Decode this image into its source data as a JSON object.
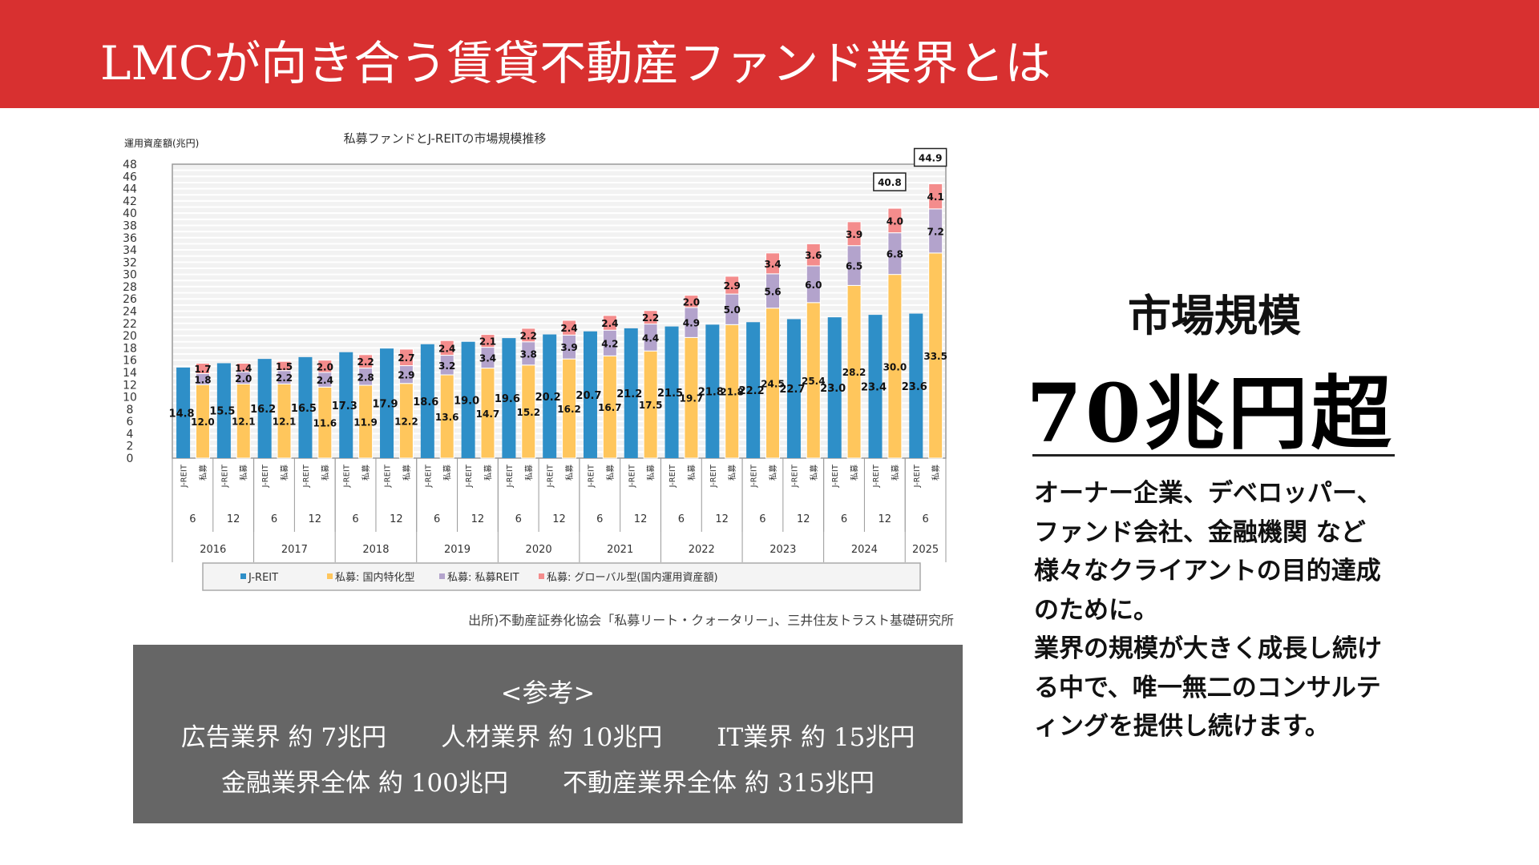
{
  "header": {
    "title": "LMCが向き合う賃貸不動産ファンド業界とは"
  },
  "chart_data": {
    "type": "bar",
    "title": "私募ファンドとJ-REITの市場規模推移",
    "ylabel": "運用資産額(兆円)",
    "xlabel": "",
    "ylim": [
      0,
      48
    ],
    "yticks": [
      0,
      2,
      4,
      6,
      8,
      10,
      12,
      14,
      16,
      18,
      20,
      22,
      24,
      26,
      28,
      30,
      32,
      34,
      36,
      38,
      40,
      42,
      44,
      46,
      48
    ],
    "grid": true,
    "legend_position": "bottom",
    "periods": [
      {
        "year": "2016",
        "month": "6"
      },
      {
        "year": "2016",
        "month": "12"
      },
      {
        "year": "2017",
        "month": "6"
      },
      {
        "year": "2017",
        "month": "12"
      },
      {
        "year": "2018",
        "month": "6"
      },
      {
        "year": "2018",
        "month": "12"
      },
      {
        "year": "2019",
        "month": "6"
      },
      {
        "year": "2019",
        "month": "12"
      },
      {
        "year": "2020",
        "month": "6"
      },
      {
        "year": "2020",
        "month": "12"
      },
      {
        "year": "2021",
        "month": "6"
      },
      {
        "year": "2021",
        "month": "12"
      },
      {
        "year": "2022",
        "month": "6"
      },
      {
        "year": "2022",
        "month": "12"
      },
      {
        "year": "2023",
        "month": "6"
      },
      {
        "year": "2023",
        "month": "12"
      },
      {
        "year": "2024",
        "month": "6"
      },
      {
        "year": "2024",
        "month": "12"
      },
      {
        "year": "2025",
        "month": "6"
      }
    ],
    "bar_labels": [
      "J-REIT",
      "私募"
    ],
    "years": [
      "2016",
      "2017",
      "2018",
      "2019",
      "2020",
      "2021",
      "2022",
      "2023",
      "2024",
      "2025"
    ],
    "series": [
      {
        "name": "J-REIT",
        "group": "J-REIT",
        "color": "#2e8fc8",
        "values": [
          14.8,
          15.5,
          16.2,
          16.5,
          17.3,
          17.9,
          18.6,
          19.0,
          19.6,
          20.2,
          20.7,
          21.2,
          21.5,
          21.8,
          22.2,
          22.7,
          23.0,
          23.4,
          23.6
        ]
      },
      {
        "name": "私募: 国内特化型",
        "group": "私募",
        "color": "#ffc65c",
        "values": [
          12.0,
          12.1,
          12.1,
          11.6,
          11.9,
          12.2,
          13.6,
          14.7,
          15.2,
          16.2,
          16.7,
          17.5,
          19.7,
          21.8,
          24.5,
          25.4,
          28.2,
          30.0,
          33.5
        ]
      },
      {
        "name": "私募: 私募REIT",
        "group": "私募",
        "color": "#b3a3cc",
        "values": [
          1.8,
          2.0,
          2.2,
          2.4,
          2.8,
          2.9,
          3.2,
          3.4,
          3.8,
          3.9,
          4.2,
          4.4,
          4.9,
          5.0,
          5.6,
          6.0,
          6.5,
          6.8,
          7.2
        ]
      },
      {
        "name": "私募: グローバル型(国内運用資産額)",
        "group": "私募",
        "color": "#f48c8c",
        "values": [
          1.7,
          1.4,
          1.5,
          2.0,
          2.2,
          2.7,
          2.4,
          2.1,
          2.2,
          2.4,
          2.4,
          2.2,
          2.0,
          2.9,
          3.4,
          3.6,
          3.9,
          4.0,
          4.1
        ]
      }
    ],
    "callouts": [
      {
        "period_index": 17,
        "label": "40.8"
      },
      {
        "period_index": 18,
        "label": "44.9"
      }
    ],
    "source": "出所)不動産証券化協会「私募リート・クォータリー」、三井住友トラスト基礎研究所"
  },
  "reference": {
    "title": "<参考>",
    "row1": [
      "広告業界 約 7兆円",
      "人材業界 約 10兆円",
      "IT業界 約 15兆円"
    ],
    "row2": [
      "金融業界全体 約 100兆円",
      "不動産業界全体 約 315兆円"
    ]
  },
  "market": {
    "title": "市場規模",
    "value": "70兆円超",
    "body_lines": [
      "オーナー企業、デベロッパー、",
      "ファンド会社、金融機関 など",
      "様々なクライアントの目的達成",
      "のために。",
      "業界の規模が大きく成長し続け",
      "る中で、唯一無二のコンサルテ",
      "ィングを提供し続けます。"
    ]
  }
}
